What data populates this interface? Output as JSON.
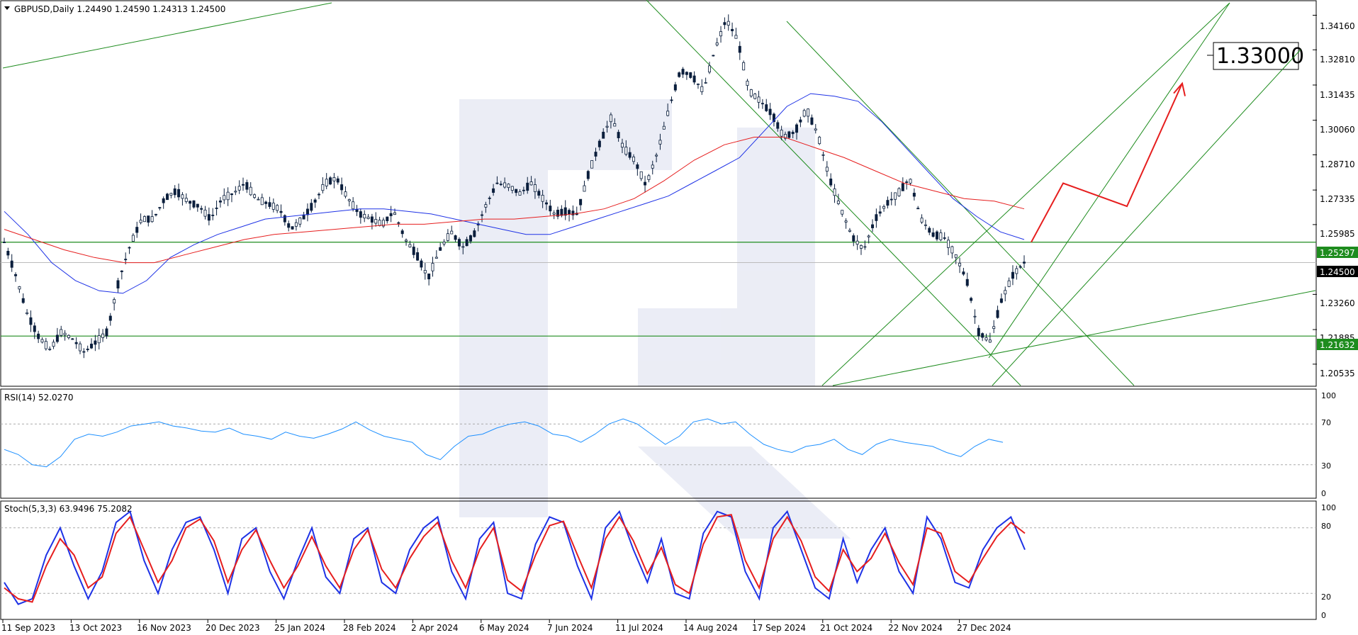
{
  "chart_data": [
    {
      "type": "candlestick",
      "title": "GBPUSD,Daily  1.24490 1.24590 1.24313 1.24500",
      "symbol": "GBPUSD",
      "timeframe": "Daily",
      "ohlc_last": {
        "open": 1.2449,
        "high": 1.2459,
        "low": 1.24313,
        "close": 1.245
      },
      "ylim": [
        1.197,
        1.347
      ],
      "y_ticks": [
        "1.34160",
        "1.32810",
        "1.31435",
        "1.30060",
        "1.28710",
        "1.27335",
        "1.25985",
        "1.23260",
        "1.21885",
        "1.20535"
      ],
      "x_ticks": [
        "11 Sep 2023",
        "13 Oct 2023",
        "16 Nov 2023",
        "20 Dec 2023",
        "25 Jan 2024",
        "28 Feb 2024",
        "2 Apr 2024",
        "6 May 2024",
        "7 Jun 2024",
        "11 Jul 2024",
        "14 Aug 2024",
        "17 Sep 2024",
        "21 Oct 2024",
        "22 Nov 2024",
        "27 Dec 2024"
      ],
      "close_path": [
        1.253,
        1.24,
        1.225,
        1.216,
        1.211,
        1.218,
        1.215,
        1.21,
        1.214,
        1.218,
        1.238,
        1.252,
        1.262,
        1.262,
        1.27,
        1.273,
        1.269,
        1.267,
        1.262,
        1.27,
        1.272,
        1.276,
        1.27,
        1.268,
        1.266,
        1.258,
        1.262,
        1.268,
        1.276,
        1.278,
        1.27,
        1.264,
        1.262,
        1.26,
        1.265,
        1.254,
        1.248,
        1.239,
        1.25,
        1.257,
        1.251,
        1.256,
        1.267,
        1.276,
        1.275,
        1.272,
        1.276,
        1.27,
        1.264,
        1.265,
        1.264,
        1.28,
        1.292,
        1.302,
        1.29,
        1.285,
        1.275,
        1.288,
        1.305,
        1.32,
        1.318,
        1.312,
        1.328,
        1.34,
        1.332,
        1.312,
        1.308,
        1.303,
        1.294,
        1.296,
        1.305,
        1.295,
        1.278,
        1.266,
        1.255,
        1.25,
        1.262,
        1.268,
        1.272,
        1.278,
        1.262,
        1.256,
        1.255,
        1.248,
        1.238,
        1.218,
        1.214,
        1.23,
        1.24,
        1.245
      ],
      "series": [
        {
          "name": "",
          "color": "#1e32e6",
          "values": [
            1.265,
            1.256,
            1.245,
            1.238,
            1.234,
            1.233,
            1.238,
            1.247,
            1.252,
            1.256,
            1.259,
            1.262,
            1.263,
            1.264,
            1.265,
            1.266,
            1.266,
            1.265,
            1.264,
            1.262,
            1.26,
            1.258,
            1.256,
            1.256,
            1.259,
            1.262,
            1.265,
            1.268,
            1.271,
            1.276,
            1.281,
            1.286,
            1.296,
            1.306,
            1.311,
            1.31,
            1.308,
            1.3,
            1.29,
            1.28,
            1.27,
            1.263,
            1.257,
            1.254
          ]
        },
        {
          "name": "",
          "color": "#e61e1e",
          "values": [
            1.258,
            1.254,
            1.25,
            1.247,
            1.245,
            1.245,
            1.248,
            1.251,
            1.254,
            1.256,
            1.257,
            1.258,
            1.259,
            1.26,
            1.26,
            1.261,
            1.262,
            1.262,
            1.263,
            1.264,
            1.266,
            1.27,
            1.277,
            1.285,
            1.291,
            1.294,
            1.294,
            1.29,
            1.286,
            1.281,
            1.276,
            1.273,
            1.27,
            1.269,
            1.266
          ]
        }
      ],
      "levels": [
        {
          "value": "1.25297",
          "color": "#1e8c1e"
        },
        {
          "value": "1.21632",
          "color": "#1e8c1e"
        },
        {
          "value": "1.24500",
          "color": "#000000"
        }
      ],
      "forecast_path": [
        1.253,
        1.276,
        1.267,
        1.315
      ],
      "target_label": "1.33000",
      "target_value": 1.33
    },
    {
      "type": "line",
      "title": "RSI(14) 52.0270",
      "ylim": [
        0,
        100
      ],
      "y_ticks": [
        "100",
        "70",
        "30",
        "0"
      ],
      "levels": [
        70,
        30
      ],
      "series": [
        {
          "name": "",
          "color": "#1e90ff",
          "values": [
            45,
            40,
            30,
            28,
            38,
            55,
            60,
            58,
            62,
            68,
            70,
            72,
            68,
            66,
            63,
            62,
            66,
            60,
            58,
            55,
            62,
            58,
            56,
            60,
            65,
            72,
            64,
            58,
            55,
            52,
            40,
            35,
            48,
            58,
            60,
            66,
            70,
            72,
            68,
            60,
            58,
            52,
            60,
            70,
            75,
            70,
            60,
            50,
            58,
            72,
            75,
            70,
            72,
            60,
            50,
            45,
            42,
            48,
            50,
            55,
            45,
            40,
            50,
            55,
            52,
            50,
            48,
            42,
            38,
            48,
            55,
            52
          ]
        }
      ]
    },
    {
      "type": "line",
      "title": "Stoch(5,3,3) 63.9496 75.2082",
      "ylim": [
        0,
        100
      ],
      "y_ticks": [
        "100",
        "80",
        "20",
        "0"
      ],
      "levels": [
        80,
        20
      ],
      "series": [
        {
          "name": "",
          "color": "#1e32e6",
          "values": [
            30,
            10,
            15,
            55,
            80,
            45,
            15,
            40,
            85,
            95,
            50,
            20,
            60,
            85,
            90,
            60,
            20,
            70,
            80,
            40,
            15,
            50,
            80,
            35,
            20,
            70,
            80,
            30,
            20,
            60,
            80,
            90,
            40,
            15,
            70,
            85,
            20,
            15,
            65,
            90,
            85,
            45,
            15,
            80,
            95,
            60,
            30,
            70,
            20,
            15,
            75,
            95,
            90,
            40,
            15,
            80,
            95,
            60,
            25,
            15,
            70,
            30,
            60,
            80,
            40,
            20,
            90,
            70,
            30,
            25,
            60,
            80,
            90,
            60
          ]
        },
        {
          "name": "",
          "color": "#e61e1e",
          "values": [
            25,
            15,
            12,
            45,
            70,
            55,
            25,
            35,
            75,
            90,
            60,
            30,
            50,
            80,
            88,
            68,
            30,
            60,
            78,
            50,
            25,
            45,
            72,
            45,
            25,
            60,
            78,
            42,
            25,
            52,
            72,
            85,
            50,
            25,
            60,
            80,
            32,
            22,
            55,
            82,
            86,
            55,
            25,
            70,
            90,
            68,
            38,
            62,
            28,
            20,
            65,
            90,
            92,
            50,
            25,
            70,
            90,
            68,
            35,
            22,
            60,
            40,
            52,
            75,
            48,
            28,
            80,
            75,
            40,
            30,
            52,
            72,
            85,
            75
          ]
        }
      ]
    }
  ]
}
